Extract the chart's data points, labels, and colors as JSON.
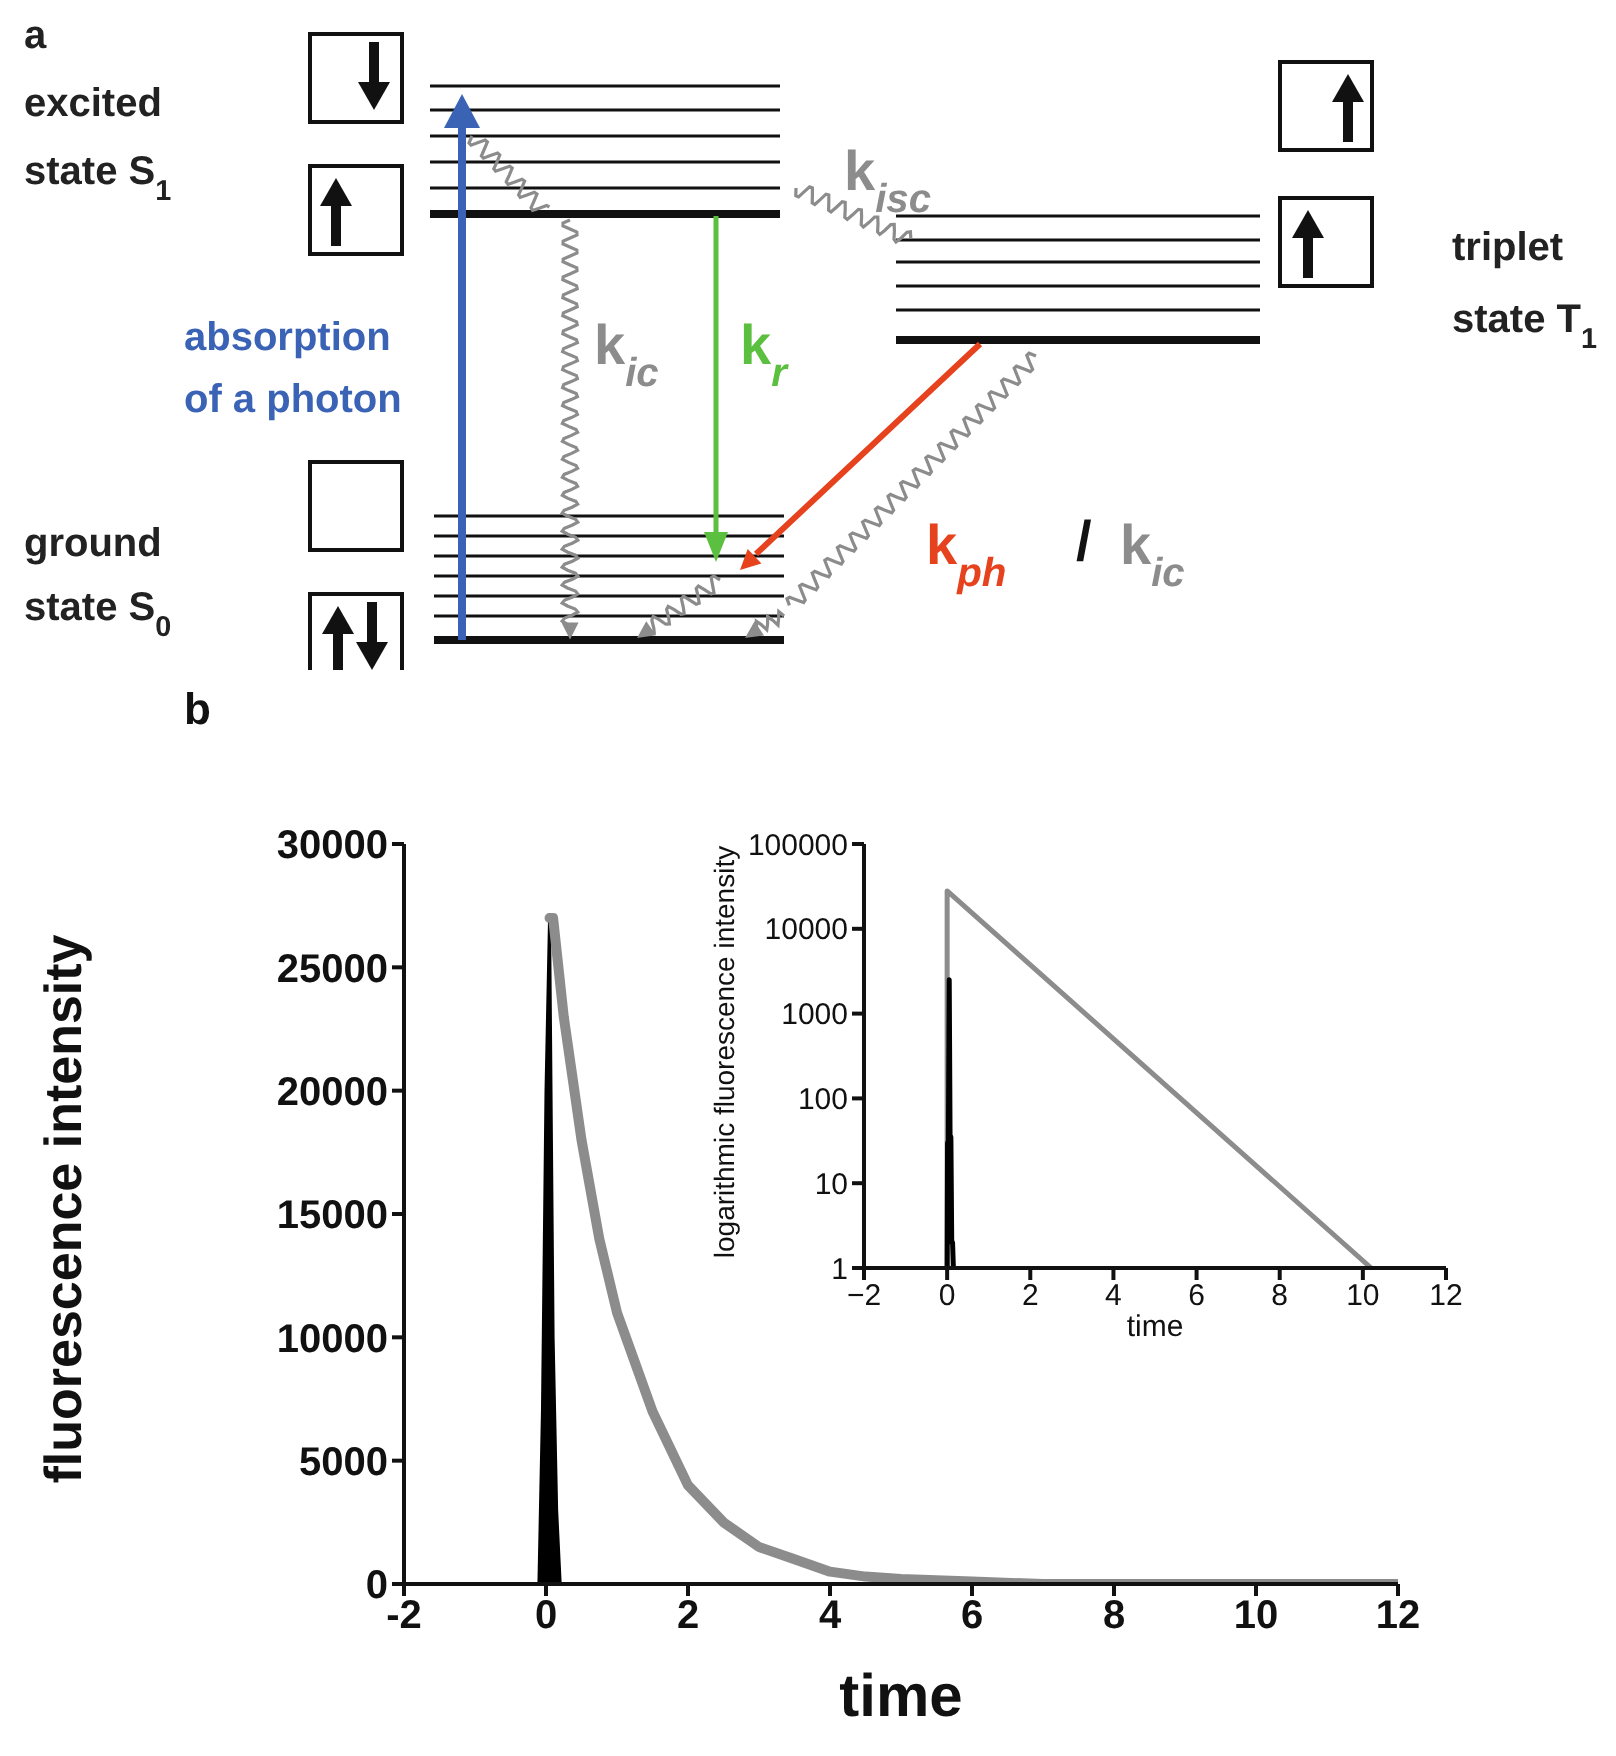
{
  "chart_data": [
    {
      "type": "other",
      "annotations": [
        "a",
        "excited\nstate S$_{1}$",
        "ground\nstate S$_{0}$",
        "triplet\nstate T$_{1}$",
        "absorption\nof a photon",
        "k$_{isc}$",
        "k$_{ic}$",
        "k$_{r}$",
        "k$_{ph}$",
        "/",
        "k$_{ic}$"
      ]
    },
    {
      "type": "line",
      "xlabel": "time",
      "ylabel": "fluorescence intensity",
      "annotations": [
        "b"
      ],
      "xlim": [
        -2,
        12
      ],
      "xticks": [
        -2,
        0,
        2,
        4,
        6,
        8,
        10,
        12
      ],
      "ylim": [
        0,
        30000
      ],
      "yticks": [
        0,
        5000,
        10000,
        15000,
        20000,
        25000,
        30000
      ],
      "series": [
        {
          "type": "line",
          "color": "#8c8c8c",
          "x": [
            0.05,
            0.1,
            0.25,
            0.5,
            0.75,
            1,
            1.25,
            1.5,
            2,
            2.5,
            3,
            3.5,
            4,
            4.5,
            5,
            6,
            7,
            8,
            10,
            12
          ],
          "values": [
            27000,
            27000,
            23000,
            18000,
            14000,
            11000,
            9000,
            7000,
            4000,
            2500,
            1500,
            1000,
            500,
            300,
            200,
            100,
            0,
            0,
            0,
            0
          ]
        },
        {
          "type": "area",
          "color": "#000000",
          "x": [
            -0.1,
            -0.05,
            0,
            0.05,
            0.1,
            0.15,
            0.2
          ],
          "values": [
            0,
            7000,
            20000,
            27000,
            10000,
            3000,
            0
          ]
        }
      ]
    },
    {
      "type": "line",
      "xlabel": "time",
      "ylabel": "logarithmic fluorescence intensity",
      "log": "y",
      "xlim": [
        -2,
        12
      ],
      "xticks": [
        {
          "value": -2,
          "label": "−2"
        },
        0,
        2,
        4,
        6,
        8,
        10,
        12
      ],
      "ylim": [
        1,
        100000
      ],
      "yticks": [
        1,
        10,
        100,
        1000,
        10000,
        100000
      ],
      "series": [
        {
          "type": "line",
          "color": "#8c8c8c",
          "x": [
            0,
            0,
            10.2
          ],
          "values": [
            1,
            28000,
            1
          ]
        },
        {
          "type": "line",
          "color": "#000000",
          "x": [
            0,
            0.01,
            0.03,
            0.05,
            0.07,
            0.09,
            0.11,
            0.13,
            0.15
          ],
          "values": [
            1,
            30,
            30,
            2500,
            35,
            35,
            2,
            2,
            1
          ]
        }
      ]
    }
  ]
}
